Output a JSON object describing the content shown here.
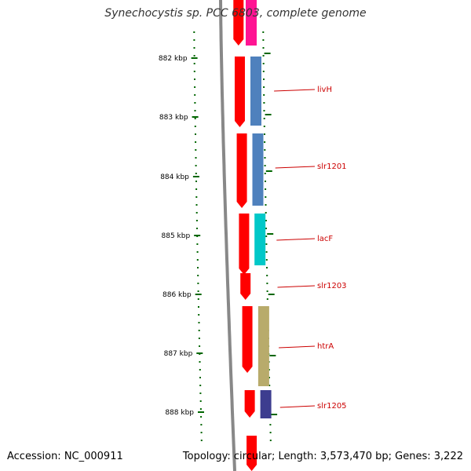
{
  "title": "Synechocystis sp. PCC 6803, complete genome",
  "footer": {
    "accession": "Accession: NC_000911",
    "topology": "Topology: circular; Length: 3,573,470 bp; Genes: 3,222"
  },
  "ruler": {
    "ticks": [
      "882 kbp",
      "883 kbp",
      "884 kbp",
      "885 kbp",
      "886 kbp",
      "887 kbp",
      "888 kbp"
    ],
    "tick_color": "#006600"
  },
  "genes": [
    {
      "name": "livH",
      "color": "#4f81bd"
    },
    {
      "name": "slr1201",
      "color": "#4f81bd"
    },
    {
      "name": "lacF",
      "color": "#00c8c8"
    },
    {
      "name": "slr1203",
      "color": ""
    },
    {
      "name": "htrA",
      "color": "#b8ab6b"
    },
    {
      "name": "slr1205",
      "color": "#3d3d8f"
    }
  ],
  "colors": {
    "cds": "#ff0000",
    "label_line": "#cc0000",
    "backbone": "#888888",
    "top_feature": "#ff1493"
  }
}
